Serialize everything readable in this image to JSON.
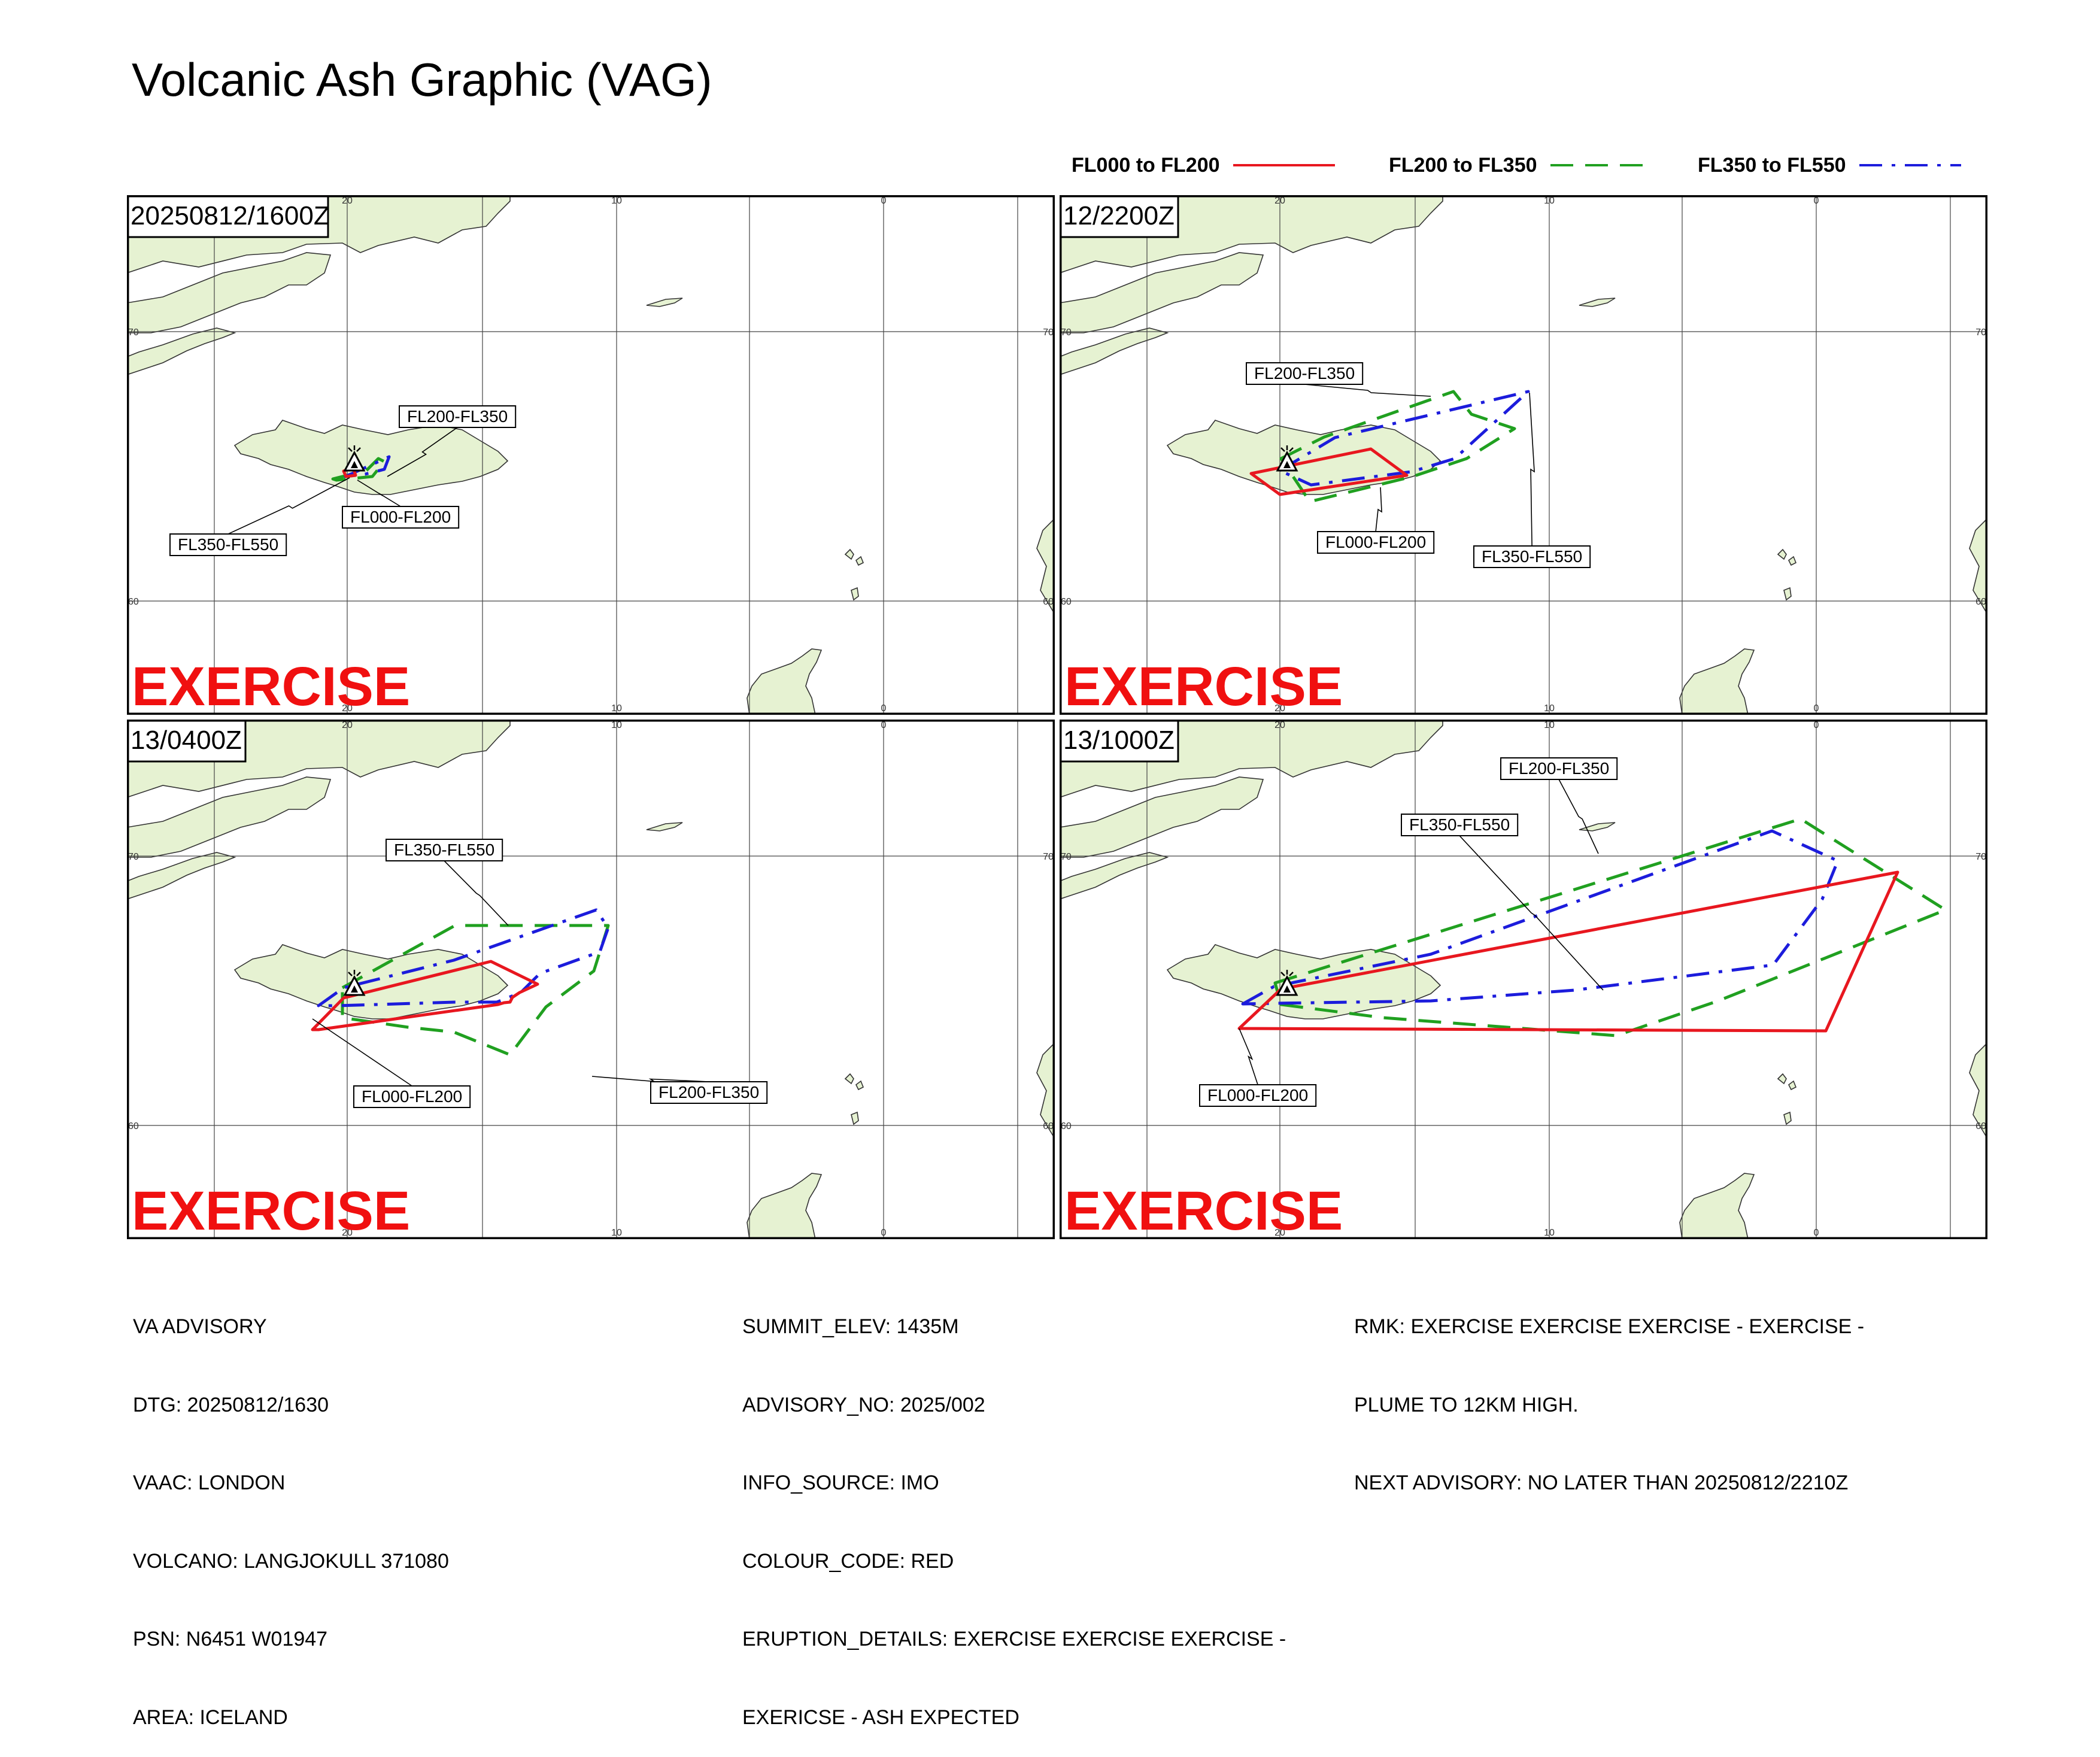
{
  "title": "Volcanic Ash Graphic (VAG)",
  "legend": [
    {
      "label": "FL000 to FL200",
      "color": "#e8171f",
      "style": "solid"
    },
    {
      "label": "FL200 to FL350",
      "color": "#20a020",
      "style": "dashed"
    },
    {
      "label": "FL350 to FL550",
      "color": "#1c1cdc",
      "style": "dashdot"
    }
  ],
  "watermark": "EXERCISE",
  "map_axis_labels": {
    "lon": [
      "20",
      "10",
      "0"
    ],
    "lat": [
      "70",
      "60"
    ]
  },
  "panels": [
    {
      "time_label": "20250812/1600Z",
      "labels": [
        "FL200-FL350",
        "FL000-FL200",
        "FL350-FL550"
      ]
    },
    {
      "time_label": "12/2200Z",
      "labels": [
        "FL200-FL350",
        "FL000-FL200",
        "FL350-FL550"
      ]
    },
    {
      "time_label": "13/0400Z",
      "labels": [
        "FL350-FL550",
        "FL000-FL200",
        "FL200-FL350"
      ]
    },
    {
      "time_label": "13/1000Z",
      "labels": [
        "FL200-FL350",
        "FL350-FL550",
        "FL000-FL200"
      ]
    }
  ],
  "advisory": {
    "col1": [
      "VA ADVISORY",
      "DTG: 20250812/1630",
      "VAAC: LONDON",
      "VOLCANO: LANGJOKULL 371080",
      "PSN: N6451 W01947",
      "AREA: ICELAND"
    ],
    "col2": [
      "SUMMIT_ELEV: 1435M",
      "ADVISORY_NO: 2025/002",
      "INFO_SOURCE: IMO",
      "COLOUR_CODE: RED",
      "ERUPTION_DETAILS: EXERCISE EXERCISE EXERCISE -",
      "EXERICSE - ASH EXPECTED"
    ],
    "col3": [
      "RMK: EXERCISE EXERCISE EXERCISE - EXERCISE -",
      "PLUME TO 12KM HIGH.",
      "NEXT ADVISORY: NO LATER THAN 20250812/2210Z"
    ]
  }
}
